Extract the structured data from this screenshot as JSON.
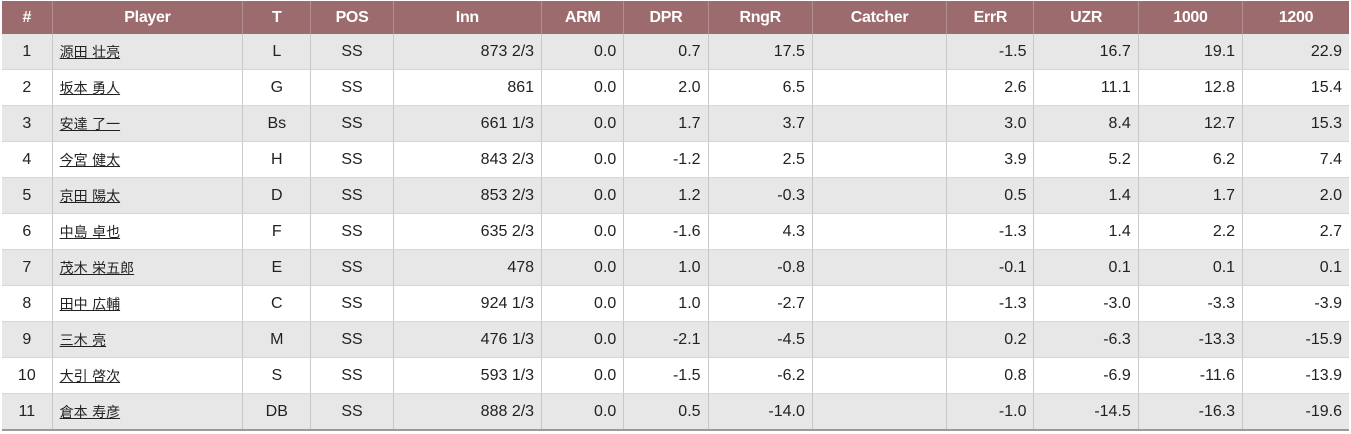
{
  "table": {
    "headers": [
      "#",
      "Player",
      "T",
      "POS",
      "Inn",
      "ARM",
      "DPR",
      "RngR",
      "Catcher",
      "ErrR",
      "UZR",
      "1000",
      "1200"
    ],
    "rows": [
      {
        "rank": "1",
        "player": "源田 壮亮",
        "team": "L",
        "pos": "SS",
        "inn": "873 2/3",
        "arm": "0.0",
        "dpr": "0.7",
        "rngr": "17.5",
        "catcher": "",
        "errr": "-1.5",
        "uzr": "16.7",
        "per1000": "19.1",
        "per1200": "22.9"
      },
      {
        "rank": "2",
        "player": "坂本 勇人",
        "team": "G",
        "pos": "SS",
        "inn": "861",
        "arm": "0.0",
        "dpr": "2.0",
        "rngr": "6.5",
        "catcher": "",
        "errr": "2.6",
        "uzr": "11.1",
        "per1000": "12.8",
        "per1200": "15.4"
      },
      {
        "rank": "3",
        "player": "安達 了一",
        "team": "Bs",
        "pos": "SS",
        "inn": "661 1/3",
        "arm": "0.0",
        "dpr": "1.7",
        "rngr": "3.7",
        "catcher": "",
        "errr": "3.0",
        "uzr": "8.4",
        "per1000": "12.7",
        "per1200": "15.3"
      },
      {
        "rank": "4",
        "player": "今宮 健太",
        "team": "H",
        "pos": "SS",
        "inn": "843 2/3",
        "arm": "0.0",
        "dpr": "-1.2",
        "rngr": "2.5",
        "catcher": "",
        "errr": "3.9",
        "uzr": "5.2",
        "per1000": "6.2",
        "per1200": "7.4"
      },
      {
        "rank": "5",
        "player": "京田 陽太",
        "team": "D",
        "pos": "SS",
        "inn": "853 2/3",
        "arm": "0.0",
        "dpr": "1.2",
        "rngr": "-0.3",
        "catcher": "",
        "errr": "0.5",
        "uzr": "1.4",
        "per1000": "1.7",
        "per1200": "2.0"
      },
      {
        "rank": "6",
        "player": "中島 卓也",
        "team": "F",
        "pos": "SS",
        "inn": "635 2/3",
        "arm": "0.0",
        "dpr": "-1.6",
        "rngr": "4.3",
        "catcher": "",
        "errr": "-1.3",
        "uzr": "1.4",
        "per1000": "2.2",
        "per1200": "2.7"
      },
      {
        "rank": "7",
        "player": "茂木 栄五郎",
        "team": "E",
        "pos": "SS",
        "inn": "478",
        "arm": "0.0",
        "dpr": "1.0",
        "rngr": "-0.8",
        "catcher": "",
        "errr": "-0.1",
        "uzr": "0.1",
        "per1000": "0.1",
        "per1200": "0.1"
      },
      {
        "rank": "8",
        "player": "田中 広輔",
        "team": "C",
        "pos": "SS",
        "inn": "924 1/3",
        "arm": "0.0",
        "dpr": "1.0",
        "rngr": "-2.7",
        "catcher": "",
        "errr": "-1.3",
        "uzr": "-3.0",
        "per1000": "-3.3",
        "per1200": "-3.9"
      },
      {
        "rank": "9",
        "player": "三木 亮",
        "team": "M",
        "pos": "SS",
        "inn": "476 1/3",
        "arm": "0.0",
        "dpr": "-2.1",
        "rngr": "-4.5",
        "catcher": "",
        "errr": "0.2",
        "uzr": "-6.3",
        "per1000": "-13.3",
        "per1200": "-15.9"
      },
      {
        "rank": "10",
        "player": "大引 啓次",
        "team": "S",
        "pos": "SS",
        "inn": "593 1/3",
        "arm": "0.0",
        "dpr": "-1.5",
        "rngr": "-6.2",
        "catcher": "",
        "errr": "0.8",
        "uzr": "-6.9",
        "per1000": "-11.6",
        "per1200": "-13.9"
      },
      {
        "rank": "11",
        "player": "倉本 寿彦",
        "team": "DB",
        "pos": "SS",
        "inn": "888 2/3",
        "arm": "0.0",
        "dpr": "0.5",
        "rngr": "-14.0",
        "catcher": "",
        "errr": "-1.0",
        "uzr": "-14.5",
        "per1000": "-16.3",
        "per1200": "-19.6"
      }
    ]
  },
  "colors": {
    "header_bg": "#9c6b6e",
    "header_text": "#ffffff",
    "row_odd_bg": "#e7e7e7",
    "row_even_bg": "#ffffff"
  }
}
